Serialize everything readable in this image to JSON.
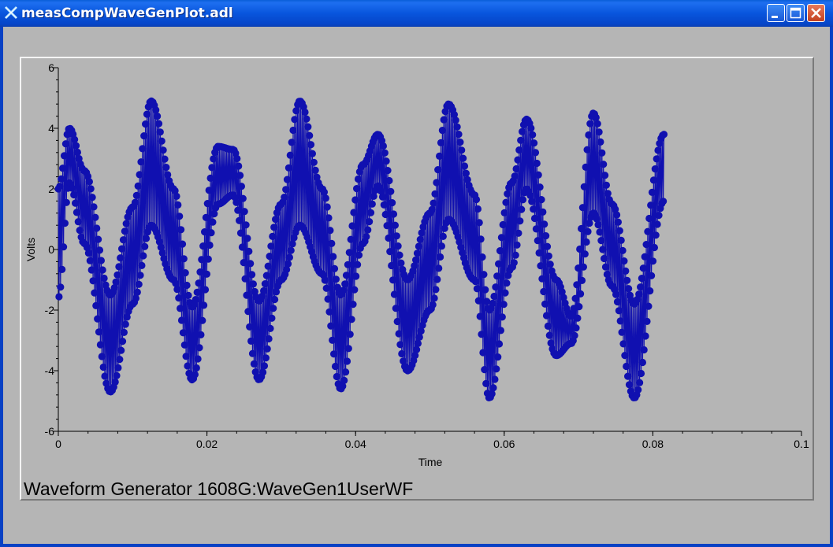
{
  "window": {
    "title": "measCompWaveGenPlot.adl",
    "colors": {
      "titlebar": "#0a5ed8",
      "background": "#b5b5b5",
      "trace": "#1010b0"
    },
    "icons": [
      "app-x-icon",
      "minimize-icon",
      "maximize-icon",
      "close-icon"
    ]
  },
  "plot": {
    "caption": "Waveform Generator 1608G:WaveGen1UserWF"
  },
  "chart_data": {
    "type": "scatter",
    "title": "",
    "xlabel": "Time",
    "ylabel": "Volts",
    "xlim": [
      0,
      0.1
    ],
    "ylim": [
      -6,
      6
    ],
    "xticks": [
      0,
      0.02,
      0.04,
      0.06,
      0.08,
      0.1
    ],
    "xtick_labels": [
      "0",
      "0.02",
      "0.04",
      "0.06",
      "0.08",
      "0.1"
    ],
    "yticks": [
      -6,
      -4,
      -2,
      0,
      2,
      4,
      6
    ],
    "ytick_labels": [
      "-6",
      "-4",
      "-2",
      "0",
      "2",
      "4",
      "6"
    ],
    "grid": false,
    "marker": "filled-circle",
    "series": [
      {
        "color": "#1010b0",
        "envelope": [
          {
            "x": 0.0,
            "low": -1.6,
            "high": 2.0
          },
          {
            "x": 0.0015,
            "low": 2.2,
            "high": 4.0
          },
          {
            "x": 0.0035,
            "low": 0.2,
            "high": 2.6
          },
          {
            "x": 0.007,
            "low": -4.7,
            "high": -1.5
          },
          {
            "x": 0.01,
            "low": -1.8,
            "high": 1.4
          },
          {
            "x": 0.0125,
            "low": 0.8,
            "high": 4.9
          },
          {
            "x": 0.0155,
            "low": -1.0,
            "high": 2.0
          },
          {
            "x": 0.018,
            "low": -4.3,
            "high": -1.9
          },
          {
            "x": 0.0215,
            "low": 1.5,
            "high": 3.4
          },
          {
            "x": 0.0235,
            "low": 1.8,
            "high": 3.3
          },
          {
            "x": 0.027,
            "low": -4.3,
            "high": -1.7
          },
          {
            "x": 0.03,
            "low": -1.0,
            "high": 1.5
          },
          {
            "x": 0.0325,
            "low": 0.8,
            "high": 4.9
          },
          {
            "x": 0.0355,
            "low": -0.8,
            "high": 2.0
          },
          {
            "x": 0.038,
            "low": -4.6,
            "high": -1.5
          },
          {
            "x": 0.041,
            "low": 0.2,
            "high": 2.8
          },
          {
            "x": 0.043,
            "low": 2.1,
            "high": 3.8
          },
          {
            "x": 0.047,
            "low": -4.0,
            "high": -1.0
          },
          {
            "x": 0.05,
            "low": -2.0,
            "high": 1.2
          },
          {
            "x": 0.0525,
            "low": 1.0,
            "high": 4.8
          },
          {
            "x": 0.056,
            "low": -1.0,
            "high": 1.8
          },
          {
            "x": 0.058,
            "low": -4.9,
            "high": -2.0
          },
          {
            "x": 0.061,
            "low": -0.6,
            "high": 2.2
          },
          {
            "x": 0.063,
            "low": 2.0,
            "high": 4.3
          },
          {
            "x": 0.067,
            "low": -3.5,
            "high": -1.0
          },
          {
            "x": 0.069,
            "low": -3.1,
            "high": -2.2
          },
          {
            "x": 0.072,
            "low": 1.2,
            "high": 4.5
          },
          {
            "x": 0.0745,
            "low": -1.2,
            "high": 1.5
          },
          {
            "x": 0.0775,
            "low": -4.9,
            "high": -1.8
          },
          {
            "x": 0.0815,
            "low": 1.6,
            "high": 3.8
          }
        ]
      }
    ]
  }
}
